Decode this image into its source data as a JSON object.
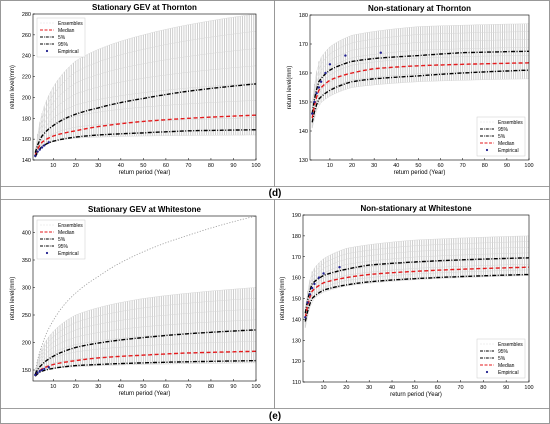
{
  "figure": {
    "row_labels": [
      "(d)",
      "(e)"
    ]
  },
  "chart_data": [
    {
      "type": "scatter",
      "title": "Stationary GEV at Thornton",
      "xlabel": "return period (Year)",
      "ylabel": "return level(mm)",
      "xlim": [
        1,
        100
      ],
      "ylim": [
        140,
        280
      ],
      "xticks": [
        10,
        20,
        30,
        40,
        50,
        60,
        70,
        80,
        90,
        100
      ],
      "yticks": [
        140,
        160,
        180,
        200,
        220,
        240,
        260,
        280
      ],
      "legend_position": "top-left",
      "legend": [
        "Ensembles",
        "Median",
        "5%",
        "95%",
        "Empirical"
      ],
      "ensemble_band": {
        "x": [
          2,
          5,
          10,
          20,
          50,
          100
        ],
        "lower": [
          142,
          152,
          158,
          161,
          163,
          164
        ],
        "upper": [
          149,
          185,
          210,
          235,
          260,
          280
        ]
      },
      "series": [
        {
          "name": "Median",
          "style": "dashed",
          "color": "#e41a1c",
          "x": [
            2,
            5,
            10,
            20,
            30,
            50,
            70,
            100
          ],
          "values": [
            145,
            157,
            163,
            168,
            172,
            177,
            180,
            183
          ]
        },
        {
          "name": "5%",
          "style": "dashdot",
          "color": "#000000",
          "x": [
            2,
            5,
            10,
            20,
            30,
            50,
            70,
            100
          ],
          "values": [
            143,
            153,
            158,
            162,
            164,
            166,
            168,
            169
          ]
        },
        {
          "name": "95%",
          "style": "dashdot",
          "color": "#000000",
          "x": [
            2,
            5,
            10,
            20,
            30,
            50,
            70,
            100
          ],
          "values": [
            147,
            163,
            173,
            184,
            190,
            199,
            206,
            213
          ]
        }
      ],
      "empirical": {
        "name": "Empirical",
        "x": [
          2,
          3,
          4,
          5,
          6,
          8
        ],
        "values": [
          144,
          148,
          150,
          152,
          154,
          157
        ]
      }
    },
    {
      "type": "scatter",
      "title": "Non-stationary at Thornton",
      "xlabel": "return period (Year)",
      "ylabel": "return level(mm)",
      "xlim": [
        1,
        100
      ],
      "ylim": [
        130,
        180
      ],
      "xticks": [
        10,
        20,
        30,
        40,
        50,
        60,
        70,
        80,
        90,
        100
      ],
      "yticks": [
        130,
        140,
        150,
        160,
        170,
        180
      ],
      "legend_position": "bottom-right",
      "legend": [
        "Ensembles",
        "95%",
        "5%",
        "Median",
        "Empirical"
      ],
      "ensemble_band": {
        "x": [
          2,
          5,
          10,
          20,
          50,
          100
        ],
        "lower": [
          141,
          149,
          152,
          155,
          157,
          158
        ],
        "upper": [
          150,
          164,
          169,
          173,
          176,
          177
        ]
      },
      "series": [
        {
          "name": "95%",
          "style": "dashdot",
          "color": "#000000",
          "x": [
            2,
            5,
            10,
            20,
            30,
            50,
            70,
            100
          ],
          "values": [
            146,
            157,
            161,
            164,
            165,
            166,
            167,
            167.5
          ]
        },
        {
          "name": "5%",
          "style": "dashdot",
          "color": "#000000",
          "x": [
            2,
            5,
            10,
            20,
            30,
            50,
            70,
            100
          ],
          "values": [
            143,
            151,
            154,
            157,
            158,
            159,
            160,
            161
          ]
        },
        {
          "name": "Median",
          "style": "dashed",
          "color": "#e41a1c",
          "x": [
            2,
            5,
            10,
            20,
            30,
            50,
            70,
            100
          ],
          "values": [
            144.5,
            154,
            157.5,
            160,
            161.5,
            162.5,
            163,
            163.5
          ]
        }
      ],
      "empirical": {
        "name": "Empirical",
        "x": [
          2,
          3,
          4,
          5,
          6,
          8,
          10,
          17,
          33
        ],
        "values": [
          146,
          150,
          153,
          155,
          157,
          160,
          163,
          166,
          167
        ]
      }
    },
    {
      "type": "scatter",
      "title": "Stationary GEV at Whitestone",
      "xlabel": "return period (Year)",
      "ylabel": "return level(mm)",
      "xlim": [
        1,
        100
      ],
      "ylim": [
        130,
        430
      ],
      "xticks": [
        10,
        20,
        30,
        40,
        50,
        60,
        70,
        80,
        90,
        100
      ],
      "yticks": [
        150,
        200,
        250,
        300,
        350,
        400
      ],
      "legend_position": "top-left",
      "legend": [
        "Ensembles",
        "Median",
        "5%",
        "95%",
        "Empirical"
      ],
      "ensemble_band": {
        "x": [
          2,
          5,
          10,
          20,
          50,
          100
        ],
        "lower": [
          138,
          148,
          153,
          156,
          160,
          163
        ],
        "upper": [
          147,
          190,
          220,
          250,
          280,
          300
        ]
      },
      "outlier_curve": {
        "x": [
          2,
          5,
          10,
          20,
          30,
          50,
          70,
          100
        ],
        "values": [
          147,
          195,
          240,
          290,
          320,
          365,
          395,
          430
        ]
      },
      "series": [
        {
          "name": "Median",
          "style": "dashed",
          "color": "#e41a1c",
          "x": [
            2,
            5,
            10,
            20,
            30,
            50,
            70,
            100
          ],
          "values": [
            140,
            152,
            160,
            167,
            172,
            177,
            181,
            184
          ]
        },
        {
          "name": "5%",
          "style": "dashdot",
          "color": "#000000",
          "x": [
            2,
            5,
            10,
            20,
            30,
            50,
            70,
            100
          ],
          "values": [
            139,
            148,
            153,
            158,
            160,
            163,
            165,
            167
          ]
        },
        {
          "name": "95%",
          "style": "dashdot",
          "color": "#000000",
          "x": [
            2,
            5,
            10,
            20,
            30,
            50,
            70,
            100
          ],
          "values": [
            143,
            160,
            175,
            191,
            199,
            209,
            216,
            223
          ]
        }
      ],
      "empirical": {
        "name": "Empirical",
        "x": [
          2,
          3,
          4,
          5,
          6,
          8
        ],
        "values": [
          141,
          145,
          148,
          150,
          152,
          155
        ]
      }
    },
    {
      "type": "scatter",
      "title": "Non-stationary at Whitestone",
      "xlabel": "return period (Year)",
      "ylabel": "return level(mm)",
      "xlim": [
        1,
        100
      ],
      "ylim": [
        110,
        190
      ],
      "xticks": [
        10,
        20,
        30,
        40,
        50,
        60,
        70,
        80,
        90,
        100
      ],
      "yticks": [
        110,
        120,
        130,
        140,
        150,
        160,
        170,
        180,
        190
      ],
      "legend_position": "bottom-right",
      "legend": [
        "Ensembles",
        "95%",
        "5%",
        "Median",
        "Empirical"
      ],
      "ensemble_band": {
        "x": [
          2,
          5,
          10,
          20,
          50,
          100
        ],
        "lower": [
          136,
          149,
          153,
          156,
          159,
          161
        ],
        "upper": [
          146,
          163,
          169,
          174,
          178,
          180
        ]
      },
      "series": [
        {
          "name": "95%",
          "style": "dashdot",
          "color": "#000000",
          "x": [
            2,
            5,
            10,
            20,
            30,
            50,
            70,
            100
          ],
          "values": [
            143,
            157,
            161,
            164,
            166,
            167.5,
            168.5,
            169.5
          ]
        },
        {
          "name": "5%",
          "style": "dashdot",
          "color": "#000000",
          "x": [
            2,
            5,
            10,
            20,
            30,
            50,
            70,
            100
          ],
          "values": [
            139,
            150,
            154,
            156.5,
            158,
            159.5,
            160.5,
            161.5
          ]
        },
        {
          "name": "Median",
          "style": "dashed",
          "color": "#e41a1c",
          "x": [
            2,
            5,
            10,
            20,
            30,
            50,
            70,
            100
          ],
          "values": [
            141,
            153.5,
            157.5,
            160,
            161.5,
            163,
            164,
            165
          ]
        }
      ],
      "empirical": {
        "name": "Empirical",
        "x": [
          2,
          3,
          4,
          5,
          6,
          8,
          10,
          17
        ],
        "values": [
          141,
          148,
          152,
          155,
          157,
          160,
          162,
          165
        ]
      }
    }
  ]
}
